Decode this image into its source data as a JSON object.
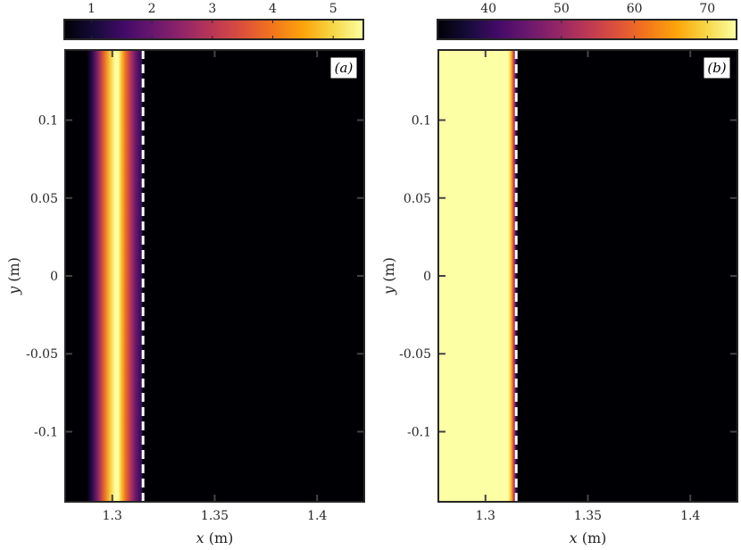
{
  "chart_data": [
    {
      "type": "heatmap",
      "panel_label": "(a)",
      "xlabel": {
        "var": "x",
        "unit": "(m)"
      },
      "ylabel": {
        "var": "y",
        "unit": "(m)"
      },
      "xlim": [
        1.277,
        1.423
      ],
      "ylim": [
        -0.145,
        0.145
      ],
      "x_ticks": [
        1.3,
        1.35,
        1.4
      ],
      "y_ticks": [
        0.1,
        0.05,
        0,
        -0.05,
        -0.1
      ],
      "x_tick_labels": [
        "1.3",
        "1.35",
        "1.4"
      ],
      "y_tick_labels": [
        "0.1",
        "0.05",
        "0",
        "-0.05",
        "-0.1"
      ],
      "colorbar": {
        "range": [
          0.55,
          5.5
        ],
        "ticks": [
          1,
          2,
          3,
          4,
          5
        ],
        "tick_labels": [
          "1",
          "2",
          "3",
          "4",
          "5"
        ],
        "colormap": "inferno"
      },
      "dashed_line_x": 1.315,
      "background_value": 0,
      "profile": {
        "x": [
          1.277,
          1.2855,
          1.2875,
          1.29,
          1.293,
          1.296,
          1.299,
          1.3015,
          1.303,
          1.3045,
          1.3065,
          1.309,
          1.3115,
          1.3145,
          1.315,
          1.423
        ],
        "values": [
          0,
          0,
          0.55,
          1.2,
          2.4,
          3.8,
          4.9,
          5.5,
          5.45,
          4.8,
          3.9,
          2.9,
          2.0,
          1.3,
          0,
          0
        ]
      }
    },
    {
      "type": "heatmap",
      "panel_label": "(b)",
      "xlabel": {
        "var": "x",
        "unit": "(m)"
      },
      "ylabel": {
        "var": "y",
        "unit": "(m)"
      },
      "xlim": [
        1.277,
        1.423
      ],
      "ylim": [
        -0.145,
        0.145
      ],
      "x_ticks": [
        1.3,
        1.35,
        1.4
      ],
      "y_ticks": [
        0.1,
        0.05,
        0,
        -0.05,
        -0.1
      ],
      "x_tick_labels": [
        "1.3",
        "1.35",
        "1.4"
      ],
      "y_tick_labels": [
        "0.1",
        "0.05",
        "0",
        "-0.05",
        "-0.1"
      ],
      "colorbar": {
        "range": [
          33,
          74
        ],
        "ticks": [
          40,
          50,
          60,
          70
        ],
        "tick_labels": [
          "40",
          "50",
          "60",
          "70"
        ],
        "colormap": "inferno"
      },
      "dashed_line_x": 1.315,
      "background_value": 33,
      "profile": {
        "x": [
          1.277,
          1.311,
          1.3125,
          1.3135,
          1.3145,
          1.3152,
          1.3158,
          1.316,
          1.423
        ],
        "values": [
          74,
          74,
          68,
          58,
          46,
          38,
          34,
          33,
          33
        ]
      }
    }
  ]
}
